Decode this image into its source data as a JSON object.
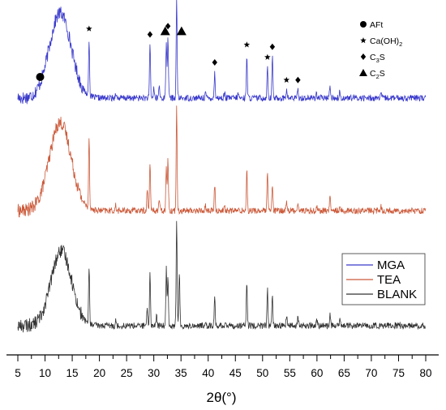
{
  "chart_data": {
    "type": "line",
    "xlabel": "2θ(°)",
    "xlim": [
      5,
      80
    ],
    "x_ticks": [
      5,
      10,
      15,
      20,
      25,
      30,
      35,
      40,
      45,
      50,
      55,
      60,
      65,
      70,
      75,
      80
    ],
    "y_ticks_shown": false,
    "legend": {
      "placement": "lower-right",
      "entries": [
        {
          "name": "MGA",
          "color": "#3a3acc"
        },
        {
          "name": "TEA",
          "color": "#cc5a3a"
        },
        {
          "name": "BLANK",
          "color": "#333333"
        }
      ]
    },
    "phase_legend": [
      {
        "marker": "circle",
        "text": "AFt",
        "sub": ""
      },
      {
        "marker": "star",
        "text": "Ca(OH)",
        "sub": "2"
      },
      {
        "marker": "diamond",
        "text": "C",
        "sub": "3",
        "after": "S"
      },
      {
        "marker": "triangle",
        "text": "C",
        "sub": "2",
        "after": "S"
      }
    ],
    "series": [
      {
        "name": "MGA",
        "color": "#3a3acc",
        "offset": 2,
        "hump": {
          "center": 12.8,
          "width": 2.0,
          "height": 0.82
        },
        "peaks": [
          [
            18.1,
            0.55
          ],
          [
            23.0,
            0.06
          ],
          [
            29.3,
            0.52
          ],
          [
            30.0,
            0.1
          ],
          [
            31.0,
            0.12
          ],
          [
            32.3,
            0.55
          ],
          [
            32.6,
            0.6
          ],
          [
            34.2,
            0.95
          ],
          [
            39.5,
            0.06
          ],
          [
            41.2,
            0.25
          ],
          [
            43.0,
            0.05
          ],
          [
            45.5,
            0.05
          ],
          [
            47.1,
            0.42
          ],
          [
            50.9,
            0.3
          ],
          [
            51.8,
            0.4
          ],
          [
            54.4,
            0.08
          ],
          [
            56.5,
            0.08
          ],
          [
            59.9,
            0.05
          ],
          [
            62.4,
            0.14
          ],
          [
            64.2,
            0.06
          ],
          [
            71.8,
            0.04
          ]
        ]
      },
      {
        "name": "TEA",
        "color": "#cc5a3a",
        "offset": 1,
        "hump": {
          "center": 12.8,
          "width": 2.0,
          "height": 0.85
        },
        "peaks": [
          [
            18.1,
            0.7
          ],
          [
            23.0,
            0.05
          ],
          [
            28.8,
            0.2
          ],
          [
            29.3,
            0.48
          ],
          [
            31.0,
            0.12
          ],
          [
            32.3,
            0.45
          ],
          [
            32.6,
            0.5
          ],
          [
            34.2,
            1.0
          ],
          [
            39.5,
            0.05
          ],
          [
            41.2,
            0.25
          ],
          [
            43.0,
            0.05
          ],
          [
            47.1,
            0.4
          ],
          [
            50.9,
            0.35
          ],
          [
            51.8,
            0.25
          ],
          [
            54.4,
            0.1
          ],
          [
            56.5,
            0.09
          ],
          [
            60.0,
            0.05
          ],
          [
            62.4,
            0.15
          ],
          [
            64.2,
            0.06
          ],
          [
            71.8,
            0.04
          ]
        ]
      },
      {
        "name": "BLANK",
        "color": "#333333",
        "offset": 0,
        "hump": {
          "center": 13.0,
          "width": 1.9,
          "height": 0.72
        },
        "peaks": [
          [
            18.1,
            0.55
          ],
          [
            23.0,
            0.05
          ],
          [
            28.8,
            0.15
          ],
          [
            29.3,
            0.52
          ],
          [
            30.5,
            0.1
          ],
          [
            32.3,
            0.55
          ],
          [
            32.6,
            0.5
          ],
          [
            34.2,
            1.0
          ],
          [
            34.7,
            0.5
          ],
          [
            39.5,
            0.05
          ],
          [
            41.2,
            0.28
          ],
          [
            43.2,
            0.05
          ],
          [
            47.1,
            0.42
          ],
          [
            50.9,
            0.35
          ],
          [
            51.8,
            0.28
          ],
          [
            54.4,
            0.1
          ],
          [
            56.5,
            0.09
          ],
          [
            60.0,
            0.05
          ],
          [
            62.4,
            0.12
          ],
          [
            64.2,
            0.06
          ],
          [
            71.8,
            0.04
          ]
        ]
      }
    ],
    "annotations": [
      {
        "marker": "circle",
        "x": 9.1
      },
      {
        "marker": "star",
        "x": 18.1
      },
      {
        "marker": "diamond",
        "x": 29.3
      },
      {
        "marker": "triangle",
        "x": 32.1
      },
      {
        "marker": "diamond",
        "x": 32.6
      },
      {
        "marker": "star",
        "x": 34.2
      },
      {
        "marker": "triangle",
        "x": 35.1
      },
      {
        "marker": "diamond",
        "x": 41.2
      },
      {
        "marker": "star",
        "x": 47.1
      },
      {
        "marker": "star",
        "x": 50.9
      },
      {
        "marker": "diamond",
        "x": 51.8
      },
      {
        "marker": "star",
        "x": 54.4
      },
      {
        "marker": "diamond",
        "x": 56.5
      }
    ]
  }
}
